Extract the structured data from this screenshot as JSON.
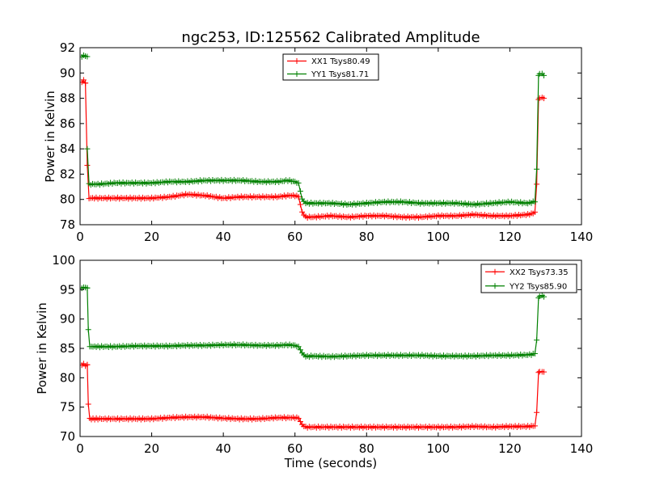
{
  "chart_data": [
    {
      "type": "line",
      "title": "ngc253, ID:125562 Calibrated Amplitude",
      "xlabel": "",
      "ylabel": "Power in Kelvin",
      "xlim": [
        0,
        140
      ],
      "ylim": [
        78,
        92
      ],
      "xticks": [
        0,
        20,
        40,
        60,
        80,
        100,
        120,
        140
      ],
      "yticks": [
        78,
        80,
        82,
        84,
        86,
        88,
        90,
        92
      ],
      "legend_position": "top-center",
      "series": [
        {
          "name": "XX1 Tsys80.49",
          "color": "#ff0000",
          "segments": [
            {
              "x": [
                0.5,
                1.0,
                1.5
              ],
              "y": [
                89.3,
                89.4,
                89.2
              ]
            },
            {
              "x": [
                1.5,
                2.0,
                2.5,
                5,
                10,
                15,
                20,
                25,
                30,
                35,
                40,
                45,
                50,
                55,
                58,
                60,
                61,
                62,
                63,
                65,
                70,
                75,
                80,
                85,
                90,
                95,
                100,
                105,
                110,
                115,
                120,
                125,
                126.5,
                127,
                127.5,
                128
              ],
              "y": [
                89.2,
                82.7,
                80.1,
                80.1,
                80.1,
                80.1,
                80.1,
                80.2,
                80.4,
                80.3,
                80.1,
                80.2,
                80.2,
                80.2,
                80.3,
                80.3,
                80.2,
                79.0,
                78.6,
                78.6,
                78.7,
                78.6,
                78.7,
                78.7,
                78.6,
                78.6,
                78.7,
                78.7,
                78.8,
                78.7,
                78.7,
                78.8,
                78.9,
                79.0,
                81.2,
                87.9
              ]
            },
            {
              "x": [
                128.3,
                129,
                129.5
              ],
              "y": [
                88.0,
                88.1,
                88.0
              ]
            }
          ]
        },
        {
          "name": "YY1 Tsys81.71",
          "color": "#008000",
          "segments": [
            {
              "x": [
                0.5,
                1.0,
                1.5,
                2.0
              ],
              "y": [
                91.3,
                91.4,
                91.3,
                91.3
              ]
            },
            {
              "x": [
                2.0,
                2.5,
                5,
                10,
                15,
                20,
                25,
                30,
                35,
                40,
                45,
                50,
                55,
                58,
                60,
                61,
                62,
                63,
                65,
                70,
                75,
                80,
                85,
                90,
                95,
                100,
                105,
                110,
                115,
                120,
                125,
                126.5,
                127,
                127.5,
                128
              ],
              "y": [
                84.0,
                81.2,
                81.2,
                81.3,
                81.3,
                81.3,
                81.4,
                81.4,
                81.5,
                81.5,
                81.5,
                81.4,
                81.4,
                81.5,
                81.4,
                81.3,
                80.0,
                79.7,
                79.7,
                79.7,
                79.6,
                79.7,
                79.8,
                79.8,
                79.7,
                79.7,
                79.7,
                79.6,
                79.7,
                79.8,
                79.7,
                79.8,
                79.8,
                82.4,
                89.8
              ]
            },
            {
              "x": [
                128.3,
                129,
                129.5
              ],
              "y": [
                89.9,
                89.9,
                89.8
              ]
            }
          ]
        }
      ]
    },
    {
      "type": "line",
      "title": "",
      "xlabel": "Time (seconds)",
      "ylabel": "Power in Kelvin",
      "xlim": [
        0,
        140
      ],
      "ylim": [
        70,
        100
      ],
      "xticks": [
        0,
        20,
        40,
        60,
        80,
        100,
        120,
        140
      ],
      "yticks": [
        70,
        75,
        80,
        85,
        90,
        95,
        100
      ],
      "legend_position": "top-right",
      "series": [
        {
          "name": "XX2 Tsys73.35",
          "color": "#ff0000",
          "segments": [
            {
              "x": [
                0.5,
                1.0,
                1.5,
                2.0
              ],
              "y": [
                82.2,
                82.3,
                82.1,
                82.2
              ]
            },
            {
              "x": [
                2.0,
                2.3,
                2.7,
                5,
                10,
                15,
                20,
                25,
                30,
                35,
                40,
                45,
                50,
                55,
                58,
                60,
                61,
                62,
                63,
                65,
                70,
                75,
                80,
                85,
                90,
                95,
                100,
                105,
                110,
                115,
                120,
                125,
                126.5,
                127,
                127.5,
                128
              ],
              "y": [
                82.2,
                75.5,
                73.0,
                73.0,
                73.0,
                73.0,
                73.0,
                73.2,
                73.3,
                73.3,
                73.1,
                73.0,
                73.0,
                73.2,
                73.2,
                73.2,
                73.1,
                72.0,
                71.6,
                71.6,
                71.6,
                71.6,
                71.6,
                71.6,
                71.6,
                71.6,
                71.6,
                71.6,
                71.7,
                71.6,
                71.7,
                71.7,
                71.8,
                71.8,
                74.1,
                80.9
              ]
            },
            {
              "x": [
                128.3,
                129,
                129.5
              ],
              "y": [
                81.0,
                81.1,
                81.0
              ]
            }
          ]
        },
        {
          "name": "YY2 Tsys85.90",
          "color": "#008000",
          "segments": [
            {
              "x": [
                0.5,
                1.0,
                1.5,
                2.0
              ],
              "y": [
                95.3,
                95.4,
                95.3,
                95.3
              ]
            },
            {
              "x": [
                2.0,
                2.3,
                2.7,
                5,
                10,
                15,
                20,
                25,
                30,
                35,
                40,
                45,
                50,
                55,
                58,
                60,
                61,
                62,
                63,
                65,
                70,
                75,
                80,
                85,
                90,
                95,
                100,
                105,
                110,
                115,
                120,
                125,
                126.5,
                127,
                127.5,
                128
              ],
              "y": [
                95.3,
                88.2,
                85.3,
                85.3,
                85.3,
                85.4,
                85.4,
                85.4,
                85.5,
                85.5,
                85.6,
                85.6,
                85.5,
                85.5,
                85.6,
                85.5,
                85.3,
                84.2,
                83.6,
                83.7,
                83.6,
                83.7,
                83.8,
                83.8,
                83.8,
                83.8,
                83.7,
                83.7,
                83.7,
                83.8,
                83.8,
                83.9,
                84.0,
                84.1,
                86.4,
                93.6
              ]
            },
            {
              "x": [
                128.3,
                129,
                129.5
              ],
              "y": [
                93.8,
                93.9,
                93.8
              ]
            }
          ]
        }
      ]
    }
  ]
}
